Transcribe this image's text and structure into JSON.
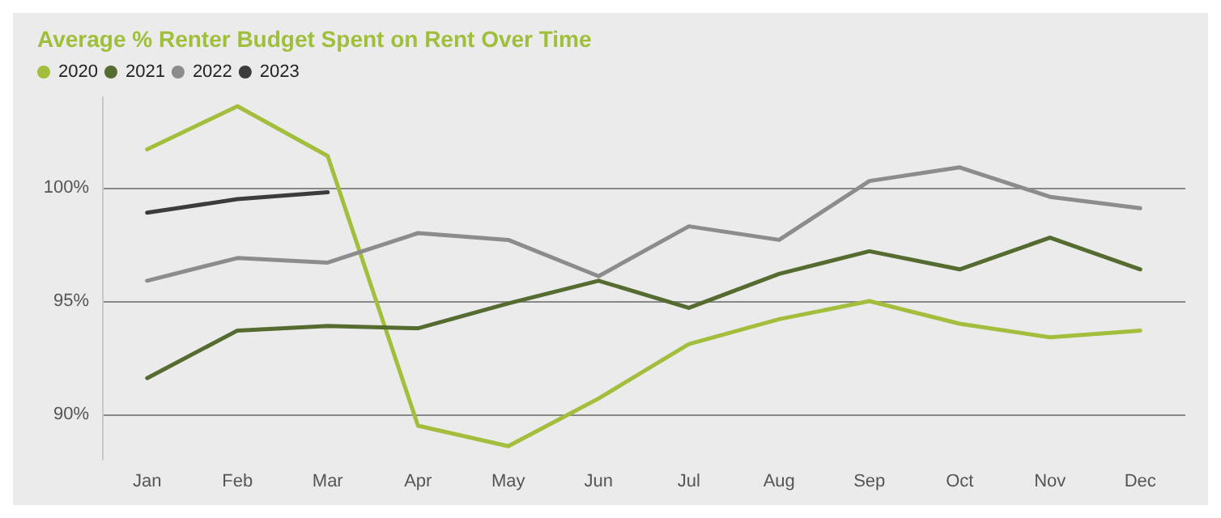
{
  "chart_data": {
    "type": "line",
    "title": "Average % Renter Budget Spent on Rent Over Time",
    "categories": [
      "Jan",
      "Feb",
      "Mar",
      "Apr",
      "May",
      "Jun",
      "Jul",
      "Aug",
      "Sep",
      "Oct",
      "Nov",
      "Dec"
    ],
    "series": [
      {
        "name": "2020",
        "color": "#a3be3c",
        "values": [
          101.7,
          103.6,
          101.4,
          89.5,
          88.6,
          90.7,
          93.1,
          94.2,
          95.0,
          94.0,
          93.4,
          93.7
        ]
      },
      {
        "name": "2021",
        "color": "#556b2f",
        "values": [
          91.6,
          93.7,
          93.9,
          93.8,
          94.9,
          95.9,
          94.7,
          96.2,
          97.2,
          96.4,
          97.8,
          96.4
        ]
      },
      {
        "name": "2022",
        "color": "#8c8c8e",
        "values": [
          95.9,
          96.9,
          96.7,
          98.0,
          97.7,
          96.1,
          98.3,
          97.7,
          100.3,
          100.9,
          99.6,
          99.1
        ]
      },
      {
        "name": "2023",
        "color": "#3c3c3c",
        "values": [
          98.9,
          99.5,
          99.8,
          null,
          null,
          null,
          null,
          null,
          null,
          null,
          null,
          null
        ]
      }
    ],
    "ylim": [
      88,
      104
    ],
    "yticks": [
      {
        "value": 90,
        "label": "90%"
      },
      {
        "value": 95,
        "label": "95%"
      },
      {
        "value": 100,
        "label": "100%"
      }
    ],
    "grid": "y",
    "legend": "top left",
    "marker": "none",
    "line_style": "solid"
  }
}
